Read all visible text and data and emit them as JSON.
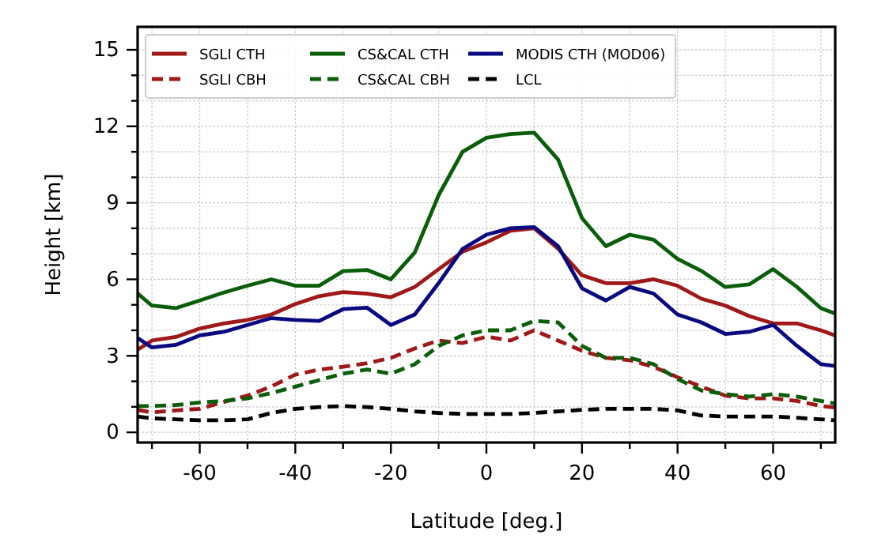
{
  "chart_data": {
    "type": "line",
    "xlabel": "Latitude [deg.]",
    "ylabel": "Height [km]",
    "x": [
      -73,
      -70,
      -65,
      -60,
      -55,
      -50,
      -45,
      -40,
      -35,
      -30,
      -25,
      -20,
      -15,
      -10,
      -5,
      0,
      5,
      10,
      15,
      20,
      25,
      30,
      35,
      40,
      45,
      50,
      55,
      60,
      65,
      70,
      73
    ],
    "series": [
      {
        "name": "SGLI CTH",
        "color": "#a01818",
        "line_style": "solid",
        "values": [
          3.24,
          3.6,
          3.74,
          4.07,
          4.27,
          4.41,
          4.62,
          5.03,
          5.34,
          5.5,
          5.44,
          5.3,
          5.7,
          6.4,
          7.08,
          7.45,
          7.9,
          8.0,
          7.2,
          6.16,
          5.85,
          5.85,
          6.0,
          5.75,
          5.24,
          4.97,
          4.56,
          4.27,
          4.27,
          4.0,
          3.8
        ]
      },
      {
        "name": "SGLI CBH",
        "color": "#a01818",
        "line_style": "dashed",
        "values": [
          0.88,
          0.78,
          0.86,
          0.92,
          1.19,
          1.44,
          1.8,
          2.26,
          2.46,
          2.57,
          2.71,
          2.92,
          3.29,
          3.6,
          3.5,
          3.75,
          3.6,
          4.0,
          3.6,
          3.2,
          2.92,
          2.83,
          2.57,
          2.16,
          1.79,
          1.44,
          1.33,
          1.33,
          1.23,
          1.03,
          0.97
        ]
      },
      {
        "name": "CS&CAL CTH",
        "color": "#0a5e0a",
        "line_style": "solid",
        "values": [
          5.45,
          4.97,
          4.87,
          5.17,
          5.48,
          5.75,
          6.0,
          5.75,
          5.75,
          6.32,
          6.37,
          6.0,
          7.05,
          9.3,
          11.0,
          11.55,
          11.7,
          11.75,
          10.7,
          8.4,
          7.3,
          7.75,
          7.55,
          6.8,
          6.33,
          5.7,
          5.8,
          6.4,
          5.7,
          4.87,
          4.66
        ]
      },
      {
        "name": "CS&CAL CBH",
        "color": "#0a5e0a",
        "line_style": "dashed",
        "values": [
          1.03,
          1.03,
          1.07,
          1.17,
          1.23,
          1.33,
          1.54,
          1.79,
          2.05,
          2.3,
          2.46,
          2.3,
          2.67,
          3.39,
          3.8,
          4.0,
          4.0,
          4.37,
          4.31,
          3.39,
          2.92,
          2.92,
          2.67,
          2.09,
          1.64,
          1.5,
          1.4,
          1.5,
          1.4,
          1.23,
          1.13
        ]
      },
      {
        "name": "MODIS CTH (MOD06)",
        "color": "#0a0a80",
        "line_style": "solid",
        "values": [
          3.7,
          3.33,
          3.43,
          3.8,
          3.94,
          4.21,
          4.48,
          4.41,
          4.37,
          4.83,
          4.89,
          4.21,
          4.62,
          5.85,
          7.19,
          7.75,
          8.0,
          8.05,
          7.3,
          5.65,
          5.17,
          5.7,
          5.44,
          4.62,
          4.31,
          3.86,
          3.94,
          4.21,
          3.39,
          2.67,
          2.6
        ]
      },
      {
        "name": "LCL",
        "color": "#000000",
        "line_style": "dashed",
        "values": [
          0.62,
          0.55,
          0.51,
          0.47,
          0.47,
          0.51,
          0.76,
          0.92,
          0.99,
          1.03,
          0.99,
          0.92,
          0.82,
          0.76,
          0.72,
          0.72,
          0.72,
          0.76,
          0.82,
          0.88,
          0.92,
          0.92,
          0.92,
          0.86,
          0.66,
          0.62,
          0.62,
          0.62,
          0.57,
          0.51,
          0.47
        ]
      }
    ],
    "xlim": [
      -73,
      73
    ],
    "ylim": [
      -0.4,
      15.9
    ],
    "xticks": [
      {
        "value": -70,
        "label": null
      },
      -60,
      {
        "value": -50,
        "label": null
      },
      -40,
      {
        "value": -30,
        "label": null
      },
      -20,
      {
        "value": -10,
        "label": null
      },
      0,
      {
        "value": 10,
        "label": null
      },
      20,
      {
        "value": 30,
        "label": null
      },
      40,
      {
        "value": 50,
        "label": null
      },
      60,
      {
        "value": 70,
        "label": null
      }
    ],
    "yticks": [
      0,
      {
        "value": 1,
        "label": null
      },
      {
        "value": 2,
        "label": null
      },
      3,
      {
        "value": 4,
        "label": null
      },
      {
        "value": 5,
        "label": null
      },
      6,
      {
        "value": 7,
        "label": null
      },
      {
        "value": 8,
        "label": null
      },
      9,
      {
        "value": 10,
        "label": null
      },
      {
        "value": 11,
        "label": null
      },
      12,
      {
        "value": 13,
        "label": null
      },
      {
        "value": 14,
        "label": null
      },
      15
    ],
    "grid": true,
    "legend": "top left",
    "marker": "none"
  }
}
